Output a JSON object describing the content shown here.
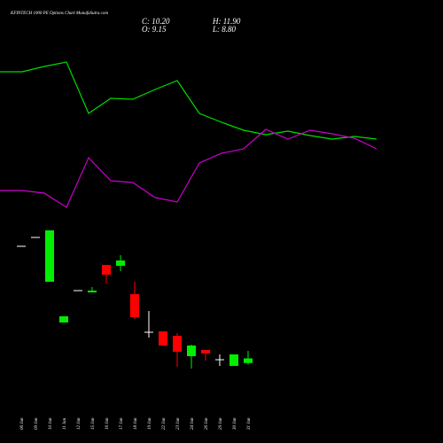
{
  "chart_data": {
    "type": "candlestick",
    "title": "KFINTECH 1000  PE Options  Chart MunafaSutra.com",
    "annotations": [
      "C: 10.20",
      "O: 9.15",
      "H: 11.90",
      "L: 8.80"
    ],
    "categories": [
      "06 Jan",
      "09 Jan",
      "10 Jan",
      "11 Jan",
      "12 Jan",
      "15 Jan",
      "16 Jan",
      "17 Jan",
      "18 Jan",
      "19 Jan",
      "22 Jan",
      "23 Jan",
      "24 Jan",
      "26 Jan",
      "29 Jan",
      "30 Jan",
      "31 Jan"
    ],
    "open": [
      35.5,
      37.5,
      27.5,
      18.3,
      25.5,
      25.1,
      31.3,
      31.1,
      24.7,
      16.1,
      16.3,
      15.3,
      10.7,
      12.1,
      9.9,
      8.5,
      9.15
    ],
    "high": [
      35.5,
      37.5,
      39.1,
      19.7,
      25.5,
      26.3,
      31.3,
      33.5,
      27.5,
      20.9,
      16.3,
      15.9,
      13.3,
      12.1,
      11.1,
      11.1,
      11.9
    ],
    "low": [
      35.5,
      37.5,
      27.5,
      18.3,
      25.5,
      25.1,
      27.1,
      29.9,
      19.1,
      14.9,
      13.1,
      8.3,
      7.9,
      9.7,
      8.5,
      8.5,
      8.8
    ],
    "close": [
      35.5,
      37.5,
      39.1,
      19.7,
      25.5,
      25.5,
      29.1,
      32.3,
      19.5,
      16.1,
      13.1,
      11.7,
      13.1,
      11.3,
      9.9,
      11.1,
      10.2
    ],
    "up_color": "#00ee00",
    "down_color": "#ff0000",
    "flat_color": "#ffffff",
    "ylim": [
      6,
      42
    ],
    "lines": {
      "xlim": [
        0,
        20
      ],
      "ylim": [
        0,
        250
      ],
      "x": [
        0,
        1,
        2,
        3,
        4,
        5,
        6,
        7,
        8,
        9,
        10,
        11,
        12,
        13,
        14,
        15,
        16,
        17
      ],
      "series": [
        {
          "color": "#00dd00",
          "values": [
            169,
            169,
            175,
            180,
            122,
            139,
            138,
            149,
            159,
            122,
            112,
            103,
            98,
            102,
            97,
            93,
            96,
            93
          ]
        },
        {
          "color": "#cc00cc",
          "values": [
            35,
            35,
            32,
            16,
            72,
            46,
            44,
            27,
            22,
            66,
            77,
            82,
            104,
            93,
            103,
            99,
            94,
            82
          ]
        }
      ]
    }
  }
}
